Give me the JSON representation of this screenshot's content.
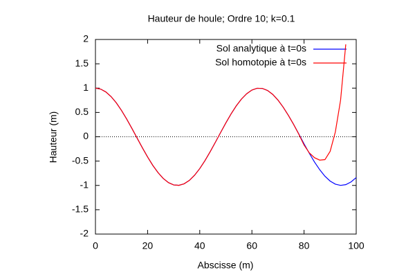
{
  "chart_data": {
    "type": "line",
    "title": "Hauteur de houle; Ordre 10; k=0.1",
    "x_label": "Abscisse (m)",
    "y_label": "Hauteur (m)",
    "x": [
      0,
      2,
      4,
      6,
      8,
      10,
      12,
      14,
      16,
      18,
      20,
      22,
      24,
      26,
      28,
      30,
      32,
      34,
      36,
      38,
      40,
      42,
      44,
      46,
      48,
      50,
      52,
      54,
      56,
      58,
      60,
      62,
      64,
      66,
      68,
      70,
      72,
      74,
      76,
      78,
      80,
      82,
      84,
      86,
      88,
      90,
      92,
      94,
      96,
      98,
      100
    ],
    "series": [
      {
        "name": "Sol analytique à t=0s",
        "color": "#0000ff",
        "values": [
          1,
          0.98,
          0.921,
          0.825,
          0.697,
          0.54,
          0.362,
          0.17,
          -0.029,
          -0.227,
          -0.416,
          -0.589,
          -0.737,
          -0.857,
          -0.942,
          -0.99,
          -0.998,
          -0.967,
          -0.897,
          -0.791,
          -0.654,
          -0.49,
          -0.307,
          -0.112,
          0.087,
          0.284,
          0.469,
          0.635,
          0.776,
          0.885,
          0.96,
          0.997,
          0.994,
          0.951,
          0.87,
          0.754,
          0.608,
          0.439,
          0.253,
          0.057,
          -0.146,
          -0.338,
          -0.519,
          -0.677,
          -0.811,
          -0.911,
          -0.974,
          -0.999,
          -0.984,
          -0.929,
          -0.839
        ]
      },
      {
        "name": "Sol homotopie à t=0s",
        "color": "#ff0000",
        "values": [
          1,
          0.98,
          0.921,
          0.825,
          0.697,
          0.54,
          0.362,
          0.17,
          -0.029,
          -0.227,
          -0.416,
          -0.589,
          -0.737,
          -0.857,
          -0.942,
          -0.99,
          -0.998,
          -0.967,
          -0.897,
          -0.791,
          -0.654,
          -0.49,
          -0.307,
          -0.112,
          0.087,
          0.284,
          0.469,
          0.635,
          0.776,
          0.885,
          0.96,
          0.997,
          0.994,
          0.951,
          0.87,
          0.754,
          0.608,
          0.439,
          0.253,
          0.05,
          -0.17,
          -0.33,
          -0.43,
          -0.48,
          -0.47,
          -0.3,
          0.1,
          0.75,
          1.9,
          null,
          null
        ]
      }
    ],
    "xlim": [
      0,
      100
    ],
    "xticks": [
      0,
      20,
      40,
      60,
      80,
      100
    ],
    "ylim": [
      -2,
      2
    ],
    "yticks": [
      -2,
      -1.5,
      -1,
      -0.5,
      0,
      0.5,
      1,
      1.5,
      2
    ],
    "zeroaxis": true,
    "legend": "top-right"
  }
}
